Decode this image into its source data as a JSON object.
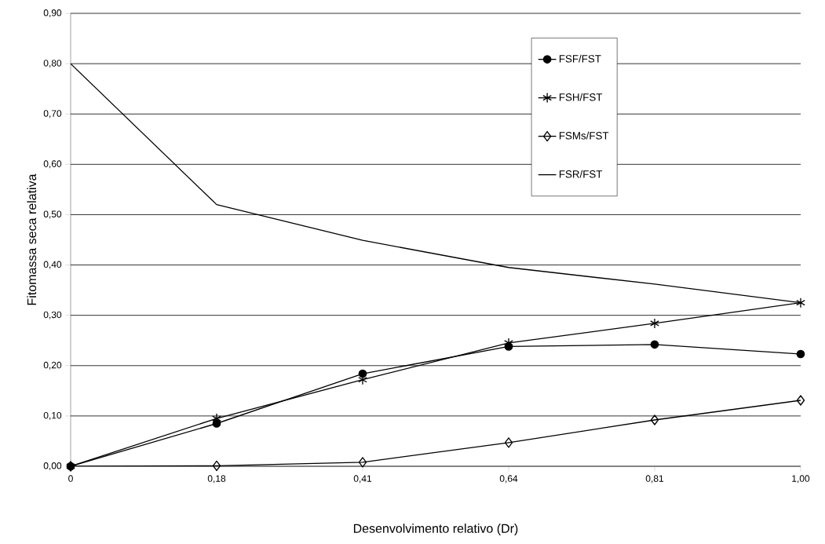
{
  "chart_data": {
    "type": "line",
    "xlabel": "Desenvolvimento relativo (Dr)",
    "ylabel": "Fitomassa seca relativa",
    "categories": [
      "0",
      "0,18",
      "0,41",
      "0,64",
      "0,81",
      "1,00"
    ],
    "series": [
      {
        "name": "FSF/FST",
        "color": "#000000",
        "marker": "circle",
        "values": [
          0,
          0.085,
          0.184,
          0.238,
          0.242,
          0.223
        ]
      },
      {
        "name": "FSH/FST",
        "color": "#000000",
        "marker": "cross",
        "values": [
          0,
          0.095,
          0.172,
          0.245,
          0.284,
          0.325
        ]
      },
      {
        "name": "FSMs/FST",
        "color": "#000000",
        "marker": "diamond",
        "values": [
          0,
          0.001,
          0.008,
          0.047,
          0.092,
          0.131
        ]
      },
      {
        "name": "FSR/FST",
        "color": "#000000",
        "marker": "none",
        "values": [
          0.8,
          0.52,
          0.449,
          0.395,
          0.362,
          0.325
        ]
      }
    ],
    "ylim": [
      0,
      0.9
    ],
    "yticks": [
      {
        "value": 0,
        "label": "0,00"
      },
      {
        "value": 0.1,
        "label": "0,10"
      },
      {
        "value": 0.2,
        "label": "0,20"
      },
      {
        "value": 0.3,
        "label": "0,30"
      },
      {
        "value": 0.4,
        "label": "0,40"
      },
      {
        "value": 0.5,
        "label": "0,50"
      },
      {
        "value": 0.6,
        "label": "0,60"
      },
      {
        "value": 0.7,
        "label": "0,70"
      },
      {
        "value": 0.8,
        "label": "0,80"
      },
      {
        "value": 0.9,
        "label": "0,90"
      }
    ],
    "grid": "y",
    "legend": "top right",
    "line_style": "solid"
  }
}
